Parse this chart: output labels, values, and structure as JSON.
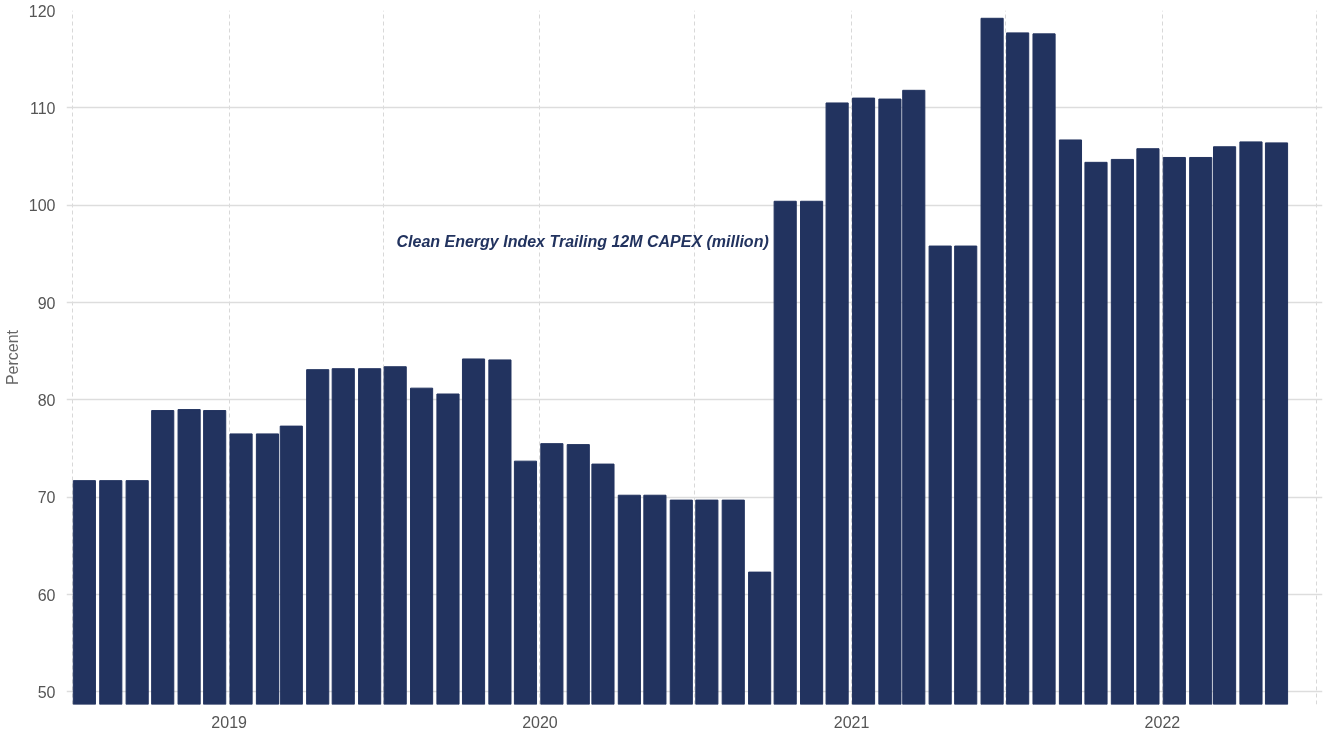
{
  "chart_data": {
    "type": "bar",
    "ylabel": "Percent",
    "annotations": [
      "Clean Energy Index Trailing 12M CAPEX (million)"
    ],
    "x": [
      "2018-07-15",
      "2018-08-15",
      "2018-09-15",
      "2018-10-15",
      "2018-11-15",
      "2018-12-15",
      "2019-01-15",
      "2019-02-15",
      "2019-03-15",
      "2019-04-15",
      "2019-05-15",
      "2019-06-15",
      "2019-07-15",
      "2019-08-15",
      "2019-09-15",
      "2019-10-15",
      "2019-11-15",
      "2019-12-15",
      "2020-01-15",
      "2020-02-15",
      "2020-03-15",
      "2020-04-15",
      "2020-05-15",
      "2020-06-15",
      "2020-07-15",
      "2020-08-15",
      "2020-09-15",
      "2020-10-15",
      "2020-11-15",
      "2020-12-15",
      "2021-01-15",
      "2021-02-15",
      "2021-03-15",
      "2021-04-15",
      "2021-05-15",
      "2021-06-15",
      "2021-07-15",
      "2021-08-15",
      "2021-09-15",
      "2021-10-15",
      "2021-11-15",
      "2021-12-15",
      "2022-01-15",
      "2022-02-15",
      "2022-03-15",
      "2022-04-15",
      "2022-05-15"
    ],
    "values": [
      71.7,
      71.7,
      71.7,
      78.9,
      79.0,
      78.9,
      76.5,
      76.5,
      77.3,
      83.1,
      83.2,
      83.2,
      83.4,
      81.2,
      80.6,
      84.2,
      84.1,
      73.7,
      75.5,
      75.4,
      73.4,
      70.2,
      70.2,
      69.7,
      69.7,
      69.7,
      62.3,
      100.4,
      100.4,
      110.5,
      111.0,
      110.9,
      111.8,
      95.8,
      95.8,
      119.2,
      117.7,
      117.6,
      106.7,
      104.4,
      104.7,
      105.8,
      104.9,
      104.9,
      106.0,
      106.5,
      106.4
    ],
    "color": "#22335f",
    "xlim": [
      "2018-06-24",
      "2022-07-08"
    ],
    "xticks": [
      {
        "value": "2018-07-01",
        "label": null
      },
      {
        "value": "2019-01-01",
        "label": "2019"
      },
      {
        "value": "2019-07-01",
        "label": null
      },
      {
        "value": "2020-01-01",
        "label": "2020"
      },
      {
        "value": "2020-07-01",
        "label": null
      },
      {
        "value": "2021-01-01",
        "label": "2021"
      },
      {
        "value": "2021-07-01",
        "label": null
      },
      {
        "value": "2022-01-01",
        "label": "2022"
      },
      {
        "value": "2022-07-01",
        "label": null
      }
    ],
    "ylim": [
      48.7,
      120
    ],
    "yticks": [
      50,
      60,
      70,
      80,
      90,
      100,
      110,
      120
    ],
    "grid": true
  }
}
